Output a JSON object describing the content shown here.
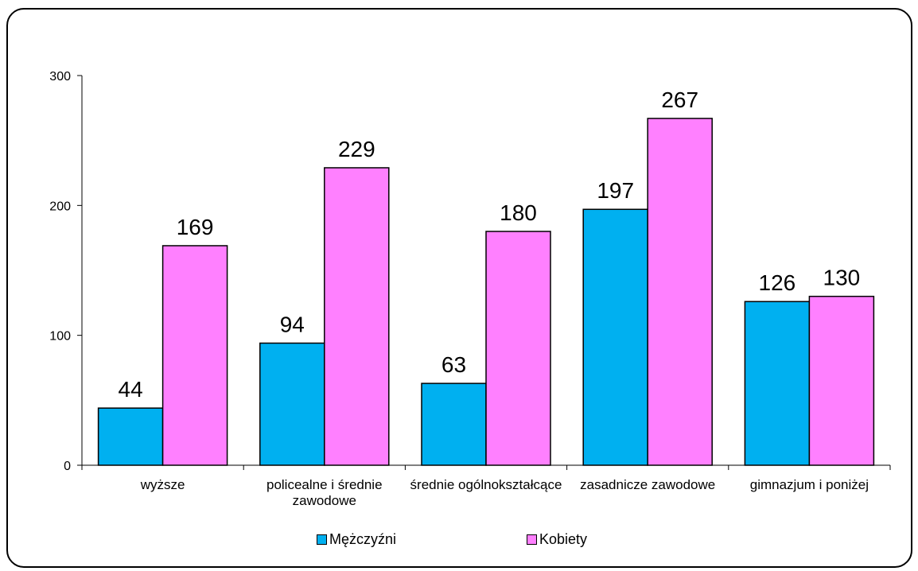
{
  "chart_data": {
    "type": "bar",
    "categories": [
      "wyższe",
      "policealne i średnie zawodowe",
      "średnie ogólnokształcące",
      "zasadnicze zawodowe",
      "gimnazjum i poniżej"
    ],
    "series": [
      {
        "name": "Mężczyźni",
        "color": "#00b0f0",
        "values": [
          44,
          94,
          63,
          197,
          126
        ]
      },
      {
        "name": "Kobiety",
        "color": "#ff80ff",
        "values": [
          169,
          229,
          180,
          267,
          130
        ]
      }
    ],
    "yticks": [
      0,
      100,
      200,
      300
    ],
    "ylim": [
      0,
      300
    ],
    "grid": false,
    "legend_position": "bottom"
  }
}
